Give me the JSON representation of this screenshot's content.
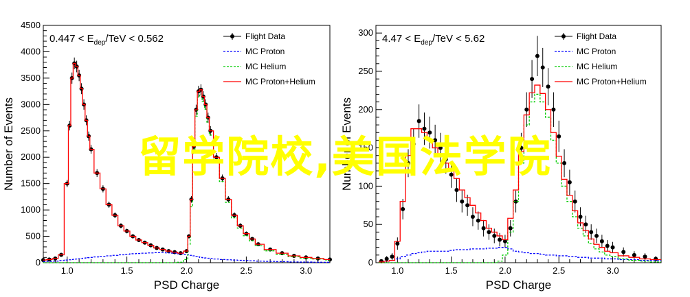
{
  "overlay_text": "留学院校,美国法学院",
  "chart_data": [
    {
      "type": "line",
      "annotation": {
        "prefix": "0.447 < E",
        "sub": "dep",
        "suffix": "/TeV < 0.562"
      },
      "xlabel": "PSD Charge",
      "ylabel": "Number of Events",
      "xlim": [
        0.8,
        3.2
      ],
      "ylim": [
        0,
        4500
      ],
      "xticks": [
        1.0,
        1.5,
        2.0,
        2.5,
        3.0
      ],
      "xtick_labels": [
        "1.0",
        "1.5",
        "2.0",
        "2.5",
        "3.0"
      ],
      "yticks": [
        0,
        500,
        1000,
        1500,
        2000,
        2500,
        3000,
        3500,
        4000,
        4500
      ],
      "ytick_labels": [
        "0",
        "500",
        "1000",
        "1500",
        "2000",
        "2500",
        "3000",
        "3500",
        "4000",
        "4500"
      ],
      "legend_position": "top-right",
      "legend": [
        "Flight Data",
        "MC Proton",
        "MC Helium",
        "MC Proton+Helium"
      ],
      "colors": {
        "flight": "#000000",
        "proton": "#0000ff",
        "helium": "#00cc00",
        "sum": "#ff0000"
      },
      "x": [
        0.8,
        0.85,
        0.9,
        0.95,
        1.0,
        1.02,
        1.04,
        1.06,
        1.08,
        1.1,
        1.12,
        1.14,
        1.16,
        1.18,
        1.2,
        1.25,
        1.3,
        1.35,
        1.4,
        1.45,
        1.5,
        1.55,
        1.6,
        1.65,
        1.7,
        1.75,
        1.8,
        1.85,
        1.9,
        1.95,
        2.0,
        2.02,
        2.04,
        2.06,
        2.08,
        2.1,
        2.12,
        2.14,
        2.16,
        2.18,
        2.2,
        2.25,
        2.3,
        2.35,
        2.4,
        2.45,
        2.5,
        2.55,
        2.6,
        2.7,
        2.8,
        2.9,
        3.0,
        3.1,
        3.2
      ],
      "series": [
        {
          "name": "Flight Data",
          "style": "points",
          "values": [
            50,
            60,
            80,
            150,
            1500,
            2600,
            3500,
            3780,
            3720,
            3550,
            3300,
            3000,
            2700,
            2400,
            2150,
            1700,
            1400,
            1100,
            900,
            700,
            600,
            500,
            430,
            380,
            330,
            280,
            250,
            220,
            200,
            180,
            220,
            500,
            1200,
            2200,
            2900,
            3250,
            3280,
            3150,
            3000,
            2750,
            2500,
            2000,
            1600,
            1200,
            900,
            700,
            550,
            450,
            350,
            250,
            180,
            130,
            100,
            80,
            60
          ]
        },
        {
          "name": "MC Proton",
          "style": "dashed",
          "values": [
            20,
            25,
            30,
            40,
            50,
            55,
            60,
            65,
            70,
            75,
            80,
            85,
            90,
            95,
            100,
            110,
            120,
            130,
            140,
            150,
            160,
            170,
            175,
            180,
            185,
            190,
            190,
            185,
            180,
            170,
            160,
            150,
            140,
            130,
            120,
            110,
            100,
            95,
            90,
            85,
            80,
            70,
            60,
            55,
            50,
            45,
            40,
            35,
            30,
            25,
            20,
            15,
            12,
            10,
            8
          ]
        },
        {
          "name": "MC Helium",
          "style": "dashed",
          "values": [
            0,
            0,
            0,
            0,
            0,
            0,
            0,
            0,
            0,
            0,
            0,
            0,
            0,
            0,
            0,
            0,
            0,
            0,
            0,
            0,
            0,
            0,
            0,
            0,
            0,
            0,
            0,
            0,
            0,
            10,
            60,
            350,
            1060,
            2070,
            2780,
            3140,
            3180,
            3055,
            2910,
            2665,
            2420,
            1930,
            1540,
            1145,
            850,
            655,
            510,
            415,
            320,
            225,
            160,
            115,
            88,
            70,
            52
          ]
        },
        {
          "name": "MC Proton+Helium",
          "style": "step",
          "values": [
            50,
            60,
            80,
            150,
            1500,
            2600,
            3500,
            3780,
            3720,
            3550,
            3300,
            3000,
            2700,
            2400,
            2150,
            1700,
            1400,
            1100,
            900,
            700,
            600,
            500,
            430,
            380,
            330,
            280,
            250,
            220,
            200,
            180,
            220,
            500,
            1200,
            2200,
            2900,
            3250,
            3280,
            3150,
            3000,
            2750,
            2500,
            2000,
            1600,
            1200,
            900,
            700,
            550,
            450,
            350,
            250,
            180,
            130,
            100,
            80,
            60
          ]
        }
      ]
    },
    {
      "type": "line",
      "annotation": {
        "prefix": "4.47 < E",
        "sub": "dep",
        "suffix": "/TeV < 5.62"
      },
      "xlabel": "PSD Charge",
      "ylabel": "Number of Events",
      "xlim": [
        0.8,
        3.45
      ],
      "ylim": [
        0,
        310
      ],
      "xticks": [
        1.0,
        1.5,
        2.0,
        2.5,
        3.0
      ],
      "xtick_labels": [
        "1.0",
        "1.5",
        "2.0",
        "2.5",
        "3.0"
      ],
      "yticks": [
        0,
        50,
        100,
        150,
        200,
        250,
        300
      ],
      "ytick_labels": [
        "0",
        "50",
        "100",
        "150",
        "200",
        "250",
        "300"
      ],
      "legend_position": "top-right",
      "legend": [
        "Flight Data",
        "MC Proton",
        "MC Helium",
        "MC Proton+Helium"
      ],
      "colors": {
        "flight": "#000000",
        "proton": "#0000ff",
        "helium": "#00cc00",
        "sum": "#ff0000"
      },
      "x": [
        0.85,
        0.9,
        0.95,
        1.0,
        1.05,
        1.1,
        1.15,
        1.2,
        1.25,
        1.3,
        1.35,
        1.4,
        1.45,
        1.5,
        1.55,
        1.6,
        1.65,
        1.7,
        1.75,
        1.8,
        1.85,
        1.9,
        1.95,
        2.0,
        2.05,
        2.1,
        2.15,
        2.2,
        2.25,
        2.3,
        2.35,
        2.4,
        2.45,
        2.5,
        2.55,
        2.6,
        2.65,
        2.7,
        2.75,
        2.8,
        2.85,
        2.9,
        2.95,
        3.0,
        3.1,
        3.2,
        3.3,
        3.4
      ],
      "series": [
        {
          "name": "Flight Data",
          "style": "points",
          "values": [
            2,
            5,
            8,
            25,
            70,
            130,
            155,
            185,
            175,
            170,
            160,
            150,
            135,
            115,
            95,
            80,
            75,
            60,
            55,
            45,
            40,
            35,
            30,
            28,
            45,
            80,
            150,
            200,
            240,
            270,
            255,
            230,
            200,
            165,
            130,
            105,
            80,
            60,
            50,
            40,
            35,
            28,
            22,
            20,
            14,
            10,
            8,
            5
          ]
        },
        {
          "name": "MC Proton",
          "style": "dashed",
          "values": [
            1,
            2,
            3,
            5,
            8,
            10,
            12,
            13,
            14,
            15,
            15,
            15,
            15,
            16,
            17,
            17,
            17,
            18,
            18,
            18,
            19,
            19,
            20,
            20,
            18,
            15,
            14,
            13,
            12,
            12,
            11,
            10,
            10,
            9,
            9,
            8,
            8,
            7,
            7,
            6,
            6,
            6,
            5,
            5,
            4,
            4,
            3,
            3
          ]
        },
        {
          "name": "MC Helium",
          "style": "dashed",
          "values": [
            0,
            0,
            0,
            0,
            0,
            0,
            0,
            0,
            0,
            0,
            0,
            0,
            0,
            0,
            0,
            0,
            0,
            0,
            0,
            0,
            0,
            0,
            2,
            10,
            40,
            80,
            130,
            180,
            210,
            220,
            210,
            190,
            160,
            130,
            100,
            80,
            60,
            45,
            35,
            25,
            18,
            14,
            10,
            8,
            5,
            3,
            2,
            1
          ]
        },
        {
          "name": "MC Proton+Helium",
          "style": "step",
          "values": [
            1,
            2,
            3,
            28,
            80,
            140,
            175,
            175,
            170,
            160,
            150,
            140,
            130,
            120,
            110,
            95,
            85,
            75,
            65,
            55,
            45,
            40,
            35,
            30,
            58,
            95,
            145,
            193,
            222,
            232,
            221,
            200,
            170,
            139,
            109,
            88,
            68,
            52,
            42,
            31,
            24,
            20,
            15,
            13,
            9,
            7,
            5,
            4
          ]
        }
      ]
    }
  ]
}
